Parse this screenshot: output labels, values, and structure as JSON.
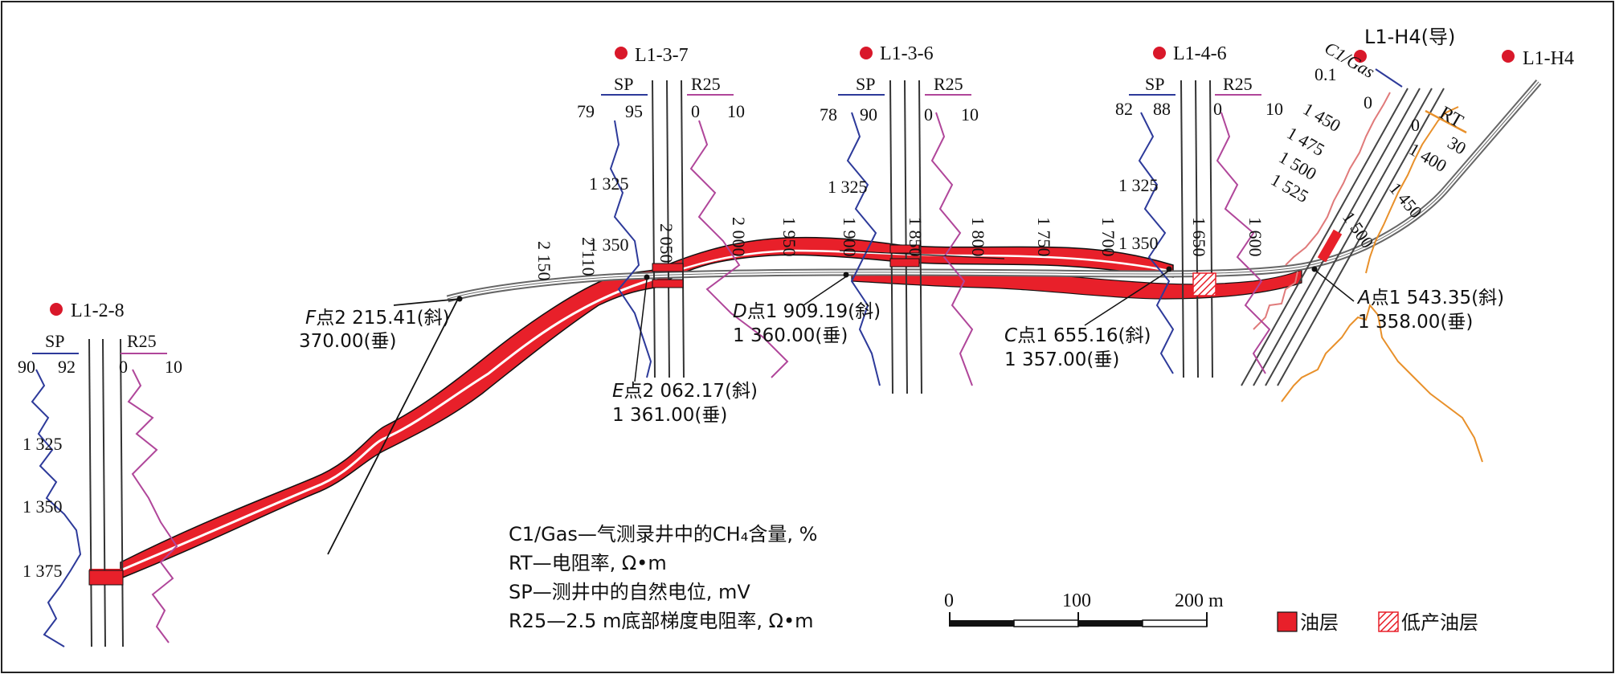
{
  "wells": [
    {
      "name": "L1-2-8",
      "sp_label": "SP",
      "r_label": "R25",
      "sp_scale": [
        "90",
        "92"
      ],
      "r_scale": [
        "0",
        "10"
      ],
      "depths": [
        "1 325",
        "1 350",
        "1 375"
      ]
    },
    {
      "name": "L1-3-7",
      "sp_label": "SP",
      "r_label": "R25",
      "sp_scale": [
        "79",
        "95"
      ],
      "r_scale": [
        "0",
        "10"
      ],
      "depths": [
        "1 325",
        "1 350"
      ]
    },
    {
      "name": "L1-3-6",
      "sp_label": "SP",
      "r_label": "R25",
      "sp_scale": [
        "78",
        "90"
      ],
      "r_scale": [
        "0",
        "10"
      ],
      "depths": [
        "1 325"
      ]
    },
    {
      "name": "L1-4-6",
      "sp_label": "SP",
      "r_label": "R25",
      "sp_scale": [
        "82",
        "88"
      ],
      "r_scale": [
        "0",
        "10"
      ],
      "depths": [
        "1 325",
        "1 350"
      ]
    },
    {
      "name": "L1-H4(导)",
      "c1_label": "C1/Gas",
      "c1_scale": [
        "0.1",
        "0"
      ],
      "rt_label": "RT",
      "rt_scale": [
        "0",
        "30"
      ],
      "depths": [
        "1 450",
        "1 475",
        "1 500",
        "1 525"
      ],
      "depths2": [
        "1 400",
        "1 450",
        "1 500"
      ]
    },
    {
      "name": "L1-H4"
    }
  ],
  "md_ticks": [
    "2 150",
    "2 110",
    "2 050",
    "2 000",
    "1 950",
    "1 900",
    "1 850",
    "1 800",
    "1 750",
    "1 700",
    "1 650",
    "1 600"
  ],
  "points": {
    "A": {
      "letter": "A",
      "l1": "点1 543.35(斜)",
      "l2": "1 358.00(垂)"
    },
    "C": {
      "letter": "C",
      "l1": "点1 655.16(斜)",
      "l2": "1 357.00(垂)"
    },
    "D": {
      "letter": "D",
      "l1": "点1 909.19(斜)",
      "l2": "1 360.00(垂)"
    },
    "E": {
      "letter": "E",
      "l1": "点2 062.17(斜)",
      "l2": "1 361.00(垂)"
    },
    "F": {
      "letter": "F",
      "l1": "点2 215.41(斜)",
      "l2": "370.00(垂)"
    }
  },
  "legend_text": [
    "C1/Gas—气测录井中的CH₄含量, %",
    "RT—电阻率, Ω•m",
    "SP—测井中的自然电位, mV",
    "R25—2.5 m底部梯度电阻率, Ω•m"
  ],
  "scale_bar": {
    "labels": [
      "0",
      "100",
      "200 m"
    ]
  },
  "legend_keys": {
    "oil": "油层",
    "low_oil": "低产油层"
  },
  "colors": {
    "oil": "#e8202a",
    "sp": "#2d3a9a",
    "r25": "#b0469a",
    "rt": "#e8902a",
    "c1": "#e07a7a",
    "well_dot": "#d9182a"
  }
}
